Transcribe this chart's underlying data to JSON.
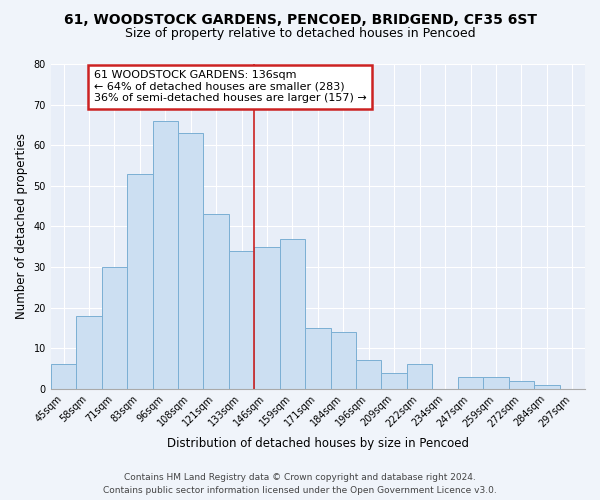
{
  "title": "61, WOODSTOCK GARDENS, PENCOED, BRIDGEND, CF35 6ST",
  "subtitle": "Size of property relative to detached houses in Pencoed",
  "xlabel": "Distribution of detached houses by size in Pencoed",
  "ylabel": "Number of detached properties",
  "bar_labels": [
    "45sqm",
    "58sqm",
    "71sqm",
    "83sqm",
    "96sqm",
    "108sqm",
    "121sqm",
    "133sqm",
    "146sqm",
    "159sqm",
    "171sqm",
    "184sqm",
    "196sqm",
    "209sqm",
    "222sqm",
    "234sqm",
    "247sqm",
    "259sqm",
    "272sqm",
    "284sqm",
    "297sqm"
  ],
  "bar_values": [
    6,
    18,
    30,
    53,
    66,
    63,
    43,
    34,
    35,
    37,
    15,
    14,
    7,
    4,
    6,
    0,
    3,
    3,
    2,
    1,
    0
  ],
  "bar_color": "#ccdff2",
  "bar_edge_color": "#7bafd4",
  "property_line_x": 7.5,
  "annotation_line1": "61 WOODSTOCK GARDENS: 136sqm",
  "annotation_line2": "← 64% of detached houses are smaller (283)",
  "annotation_line3": "36% of semi-detached houses are larger (157) →",
  "annotation_box_color": "#ffffff",
  "annotation_box_edge_color": "#cc2222",
  "ylim": [
    0,
    80
  ],
  "yticks": [
    0,
    10,
    20,
    30,
    40,
    50,
    60,
    70,
    80
  ],
  "footer_line1": "Contains HM Land Registry data © Crown copyright and database right 2024.",
  "footer_line2": "Contains public sector information licensed under the Open Government Licence v3.0.",
  "bg_color": "#f0f4fa",
  "plot_bg_color": "#e8eef8",
  "grid_color": "#ffffff",
  "title_fontsize": 10,
  "subtitle_fontsize": 9,
  "axis_label_fontsize": 8.5,
  "tick_fontsize": 7,
  "annotation_fontsize": 8,
  "footer_fontsize": 6.5
}
